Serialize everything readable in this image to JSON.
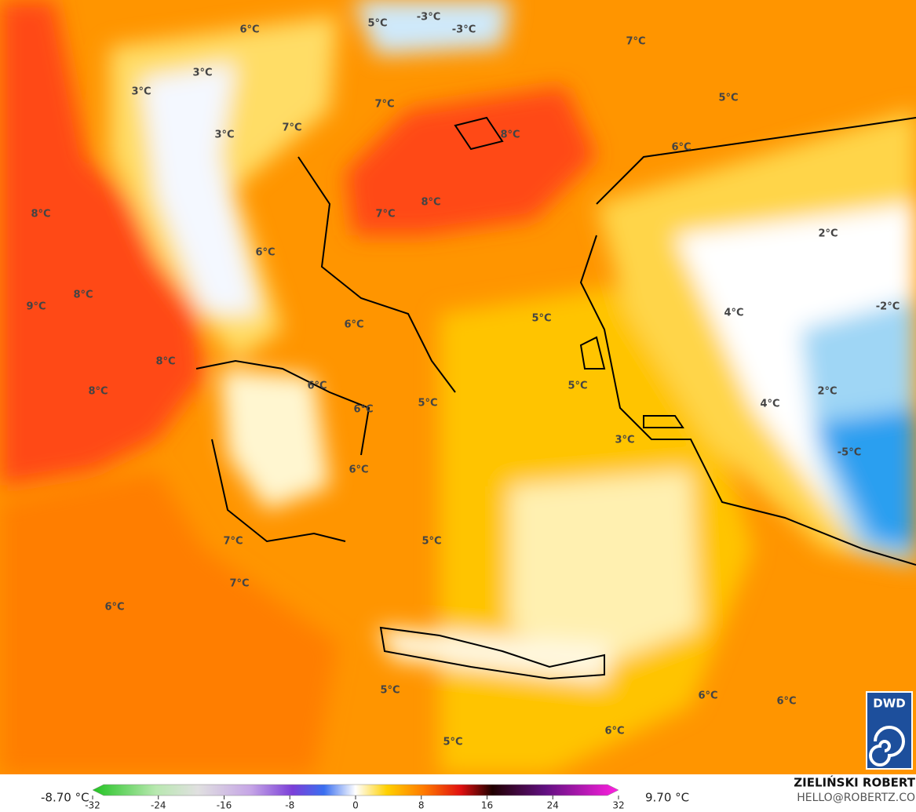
{
  "map": {
    "labels": [
      "6°C",
      "5°C",
      "-3°C",
      "-3°C",
      "7°C",
      "3°C",
      "3°C",
      "7°C",
      "5°C",
      "7°C",
      "3°C",
      "8°C",
      "6°C",
      "8°C",
      "7°C",
      "8°C",
      "2°C",
      "6°C",
      "8°C",
      "9°C",
      "-2°C",
      "4°C",
      "5°C",
      "6°C",
      "8°C",
      "6°C",
      "5°C",
      "2°C",
      "8°C",
      "5°C",
      "4°C",
      "6°C",
      "3°C",
      "-5°C",
      "6°C",
      "7°C",
      "5°C",
      "7°C",
      "6°C",
      "5°C",
      "6°C",
      "6°C",
      "6°C",
      "5°C"
    ],
    "legend": {
      "min_label": "-8.70 °C",
      "max_label": "9.70 °C",
      "range": [
        -32,
        32
      ],
      "ticks": [
        -32,
        -24,
        -16,
        -8,
        0,
        8,
        16,
        24,
        32
      ]
    },
    "credit": {
      "name": "ZIELIŃSKI ROBERT",
      "email": "HELLO@ROBERTZ.CO"
    },
    "logo": "DWD"
  }
}
